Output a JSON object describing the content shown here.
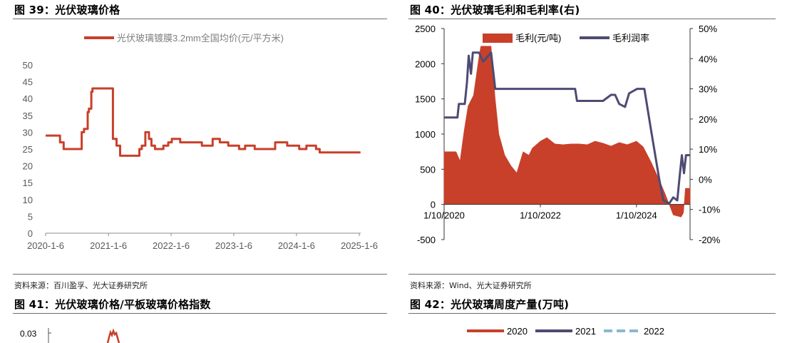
{
  "fig39": {
    "title": "图 39：光伏玻璃价格",
    "source": "资料来源：百川盈孚、光大证券研究所",
    "chart_data": {
      "type": "line",
      "legend_position": "top-center",
      "series": [
        {
          "name": "光伏玻璃镀膜3.2mm全国均价(元/平方米)",
          "color": "#c8402a",
          "points": [
            [
              "2020-01-06",
              29
            ],
            [
              "2020-03-09",
              29
            ],
            [
              "2020-03-30",
              27
            ],
            [
              "2020-04-20",
              25
            ],
            [
              "2020-07-27",
              25
            ],
            [
              "2020-08-03",
              30
            ],
            [
              "2020-08-17",
              31
            ],
            [
              "2020-09-07",
              36
            ],
            [
              "2020-09-14",
              37
            ],
            [
              "2020-09-28",
              42
            ],
            [
              "2020-10-05",
              43
            ],
            [
              "2021-01-18",
              43
            ],
            [
              "2021-02-01",
              28
            ],
            [
              "2021-02-22",
              26
            ],
            [
              "2021-03-15",
              23
            ],
            [
              "2021-06-28",
              23
            ],
            [
              "2021-07-05",
              25
            ],
            [
              "2021-07-19",
              26
            ],
            [
              "2021-08-09",
              30
            ],
            [
              "2021-08-30",
              28
            ],
            [
              "2021-09-13",
              26
            ],
            [
              "2021-10-04",
              25
            ],
            [
              "2021-11-22",
              26
            ],
            [
              "2021-12-20",
              27
            ],
            [
              "2022-01-10",
              28
            ],
            [
              "2022-02-07",
              28
            ],
            [
              "2022-02-28",
              27
            ],
            [
              "2022-06-06",
              27
            ],
            [
              "2022-07-04",
              26
            ],
            [
              "2022-09-05",
              28
            ],
            [
              "2022-10-17",
              27
            ],
            [
              "2022-12-05",
              26
            ],
            [
              "2023-01-09",
              26
            ],
            [
              "2023-02-06",
              25
            ],
            [
              "2023-03-13",
              26
            ],
            [
              "2023-05-08",
              25
            ],
            [
              "2023-09-04",
              27
            ],
            [
              "2023-11-13",
              26
            ],
            [
              "2024-01-08",
              26
            ],
            [
              "2024-01-22",
              25
            ],
            [
              "2024-03-04",
              26
            ],
            [
              "2024-04-29",
              25
            ],
            [
              "2024-05-20",
              24
            ],
            [
              "2025-01-13",
              24
            ]
          ]
        }
      ],
      "ylim": [
        0,
        50
      ],
      "yticks": [
        "0",
        "5",
        "10",
        "15",
        "20",
        "25",
        "30",
        "35",
        "40",
        "45",
        "50"
      ],
      "xticks": [
        "2020-1-6",
        "2021-1-6",
        "2022-1-6",
        "2023-1-6",
        "2024-1-6",
        "2025-1-6"
      ],
      "grid": false
    }
  },
  "fig40": {
    "title": "图 40：光伏玻璃毛利和毛利率(右)",
    "source": "资料来源：Wind、光大证券研究所",
    "chart_data": {
      "type": "area",
      "legend_position": "top",
      "series": [
        {
          "name": "毛利(元/吨)",
          "axis": "left",
          "color": "#c8402a",
          "points": [
            [
              "2020-01-10",
              750
            ],
            [
              "2020-04-10",
              750
            ],
            [
              "2020-05-10",
              620
            ],
            [
              "2020-06-10",
              1050
            ],
            [
              "2020-07-10",
              1400
            ],
            [
              "2020-08-20",
              1550
            ],
            [
              "2020-10-01",
              2100
            ],
            [
              "2020-10-15",
              2250
            ],
            [
              "2021-01-01",
              2250
            ],
            [
              "2021-02-01",
              1500
            ],
            [
              "2021-03-01",
              1000
            ],
            [
              "2021-04-15",
              700
            ],
            [
              "2021-06-01",
              550
            ],
            [
              "2021-07-15",
              450
            ],
            [
              "2021-09-01",
              750
            ],
            [
              "2021-10-15",
              700
            ],
            [
              "2021-11-10",
              800
            ],
            [
              "2022-01-10",
              900
            ],
            [
              "2022-03-01",
              950
            ],
            [
              "2022-05-01",
              860
            ],
            [
              "2022-07-01",
              850
            ],
            [
              "2022-09-01",
              860
            ],
            [
              "2022-11-01",
              860
            ],
            [
              "2023-01-01",
              850
            ],
            [
              "2023-03-01",
              900
            ],
            [
              "2023-05-01",
              870
            ],
            [
              "2023-07-01",
              830
            ],
            [
              "2023-09-01",
              880
            ],
            [
              "2023-11-01",
              850
            ],
            [
              "2024-01-10",
              900
            ],
            [
              "2024-03-01",
              820
            ],
            [
              "2024-05-01",
              600
            ],
            [
              "2024-07-01",
              350
            ],
            [
              "2024-08-15",
              150
            ],
            [
              "2024-09-15",
              0
            ],
            [
              "2024-10-15",
              -150
            ],
            [
              "2024-12-15",
              -180
            ],
            [
              "2025-01-01",
              -120
            ],
            [
              "2025-01-15",
              230
            ],
            [
              "2025-02-20",
              230
            ]
          ]
        },
        {
          "name": "毛利润率",
          "axis": "right",
          "color": "#4d4b73",
          "points": [
            [
              "2020-01-10",
              0.205
            ],
            [
              "2020-04-20",
              0.205
            ],
            [
              "2020-05-01",
              0.25
            ],
            [
              "2020-06-15",
              0.25
            ],
            [
              "2020-07-01",
              0.32
            ],
            [
              "2020-07-15",
              0.41
            ],
            [
              "2020-08-01",
              0.35
            ],
            [
              "2020-08-15",
              0.42
            ],
            [
              "2020-10-01",
              0.42
            ],
            [
              "2020-11-01",
              0.39
            ],
            [
              "2021-01-01",
              0.42
            ],
            [
              "2021-02-01",
              0.3
            ],
            [
              "2022-10-01",
              0.3
            ],
            [
              "2022-10-15",
              0.26
            ],
            [
              "2022-11-01",
              0.26
            ],
            [
              "2023-05-01",
              0.26
            ],
            [
              "2023-07-01",
              0.28
            ],
            [
              "2023-08-01",
              0.28
            ],
            [
              "2023-09-01",
              0.25
            ],
            [
              "2023-10-15",
              0.24
            ],
            [
              "2023-11-15",
              0.285
            ],
            [
              "2024-01-15",
              0.3
            ],
            [
              "2024-03-10",
              0.3
            ],
            [
              "2024-05-01",
              0.16
            ],
            [
              "2024-07-01",
              0.0
            ],
            [
              "2024-08-01",
              -0.07
            ],
            [
              "2024-09-15",
              -0.08
            ],
            [
              "2024-10-15",
              -0.06
            ],
            [
              "2024-11-15",
              -0.07
            ],
            [
              "2024-12-01",
              0.0
            ],
            [
              "2024-12-20",
              0.08
            ],
            [
              "2025-01-05",
              0.02
            ],
            [
              "2025-01-20",
              0.08
            ],
            [
              "2025-02-20",
              0.08
            ]
          ]
        }
      ],
      "ylim_left": [
        -500,
        2500
      ],
      "yticks_left": [
        "-500",
        "0",
        "500",
        "1000",
        "1500",
        "2000",
        "2500"
      ],
      "ylim_right": [
        -0.2,
        0.5
      ],
      "yticks_right": [
        "-20%",
        "-10%",
        "0%",
        "10%",
        "20%",
        "30%",
        "40%",
        "50%"
      ],
      "xticks": [
        "1/10/2020",
        "1/10/2022",
        "1/10/2024"
      ],
      "grid": false
    }
  },
  "fig41": {
    "title": "图 41：光伏玻璃价格/平板玻璃价格指数",
    "y_tick_visible": "0.03"
  },
  "fig42": {
    "title": "图 42：光伏玻璃周度产量(万吨)",
    "legend": [
      {
        "name": "2020",
        "color": "#c8402a",
        "style": "solid"
      },
      {
        "name": "2021",
        "color": "#4d4b73",
        "style": "solid"
      },
      {
        "name": "2022",
        "color": "#8bb8cf",
        "style": "dashed"
      }
    ]
  }
}
